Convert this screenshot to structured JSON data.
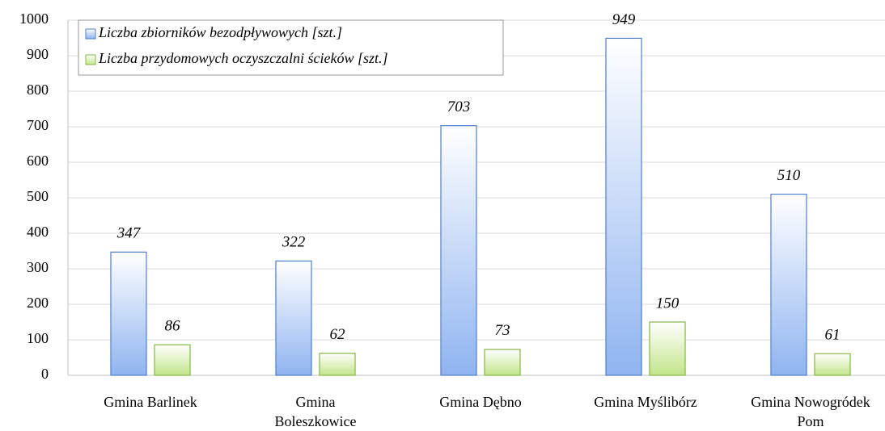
{
  "chart_data": {
    "type": "bar",
    "categories": [
      "Gmina Barlinek",
      "Gmina Boleszkowice",
      "Gmina Dębno",
      "Gmina Myślibórz",
      "Gmina Nowogródek Pom"
    ],
    "series": [
      {
        "name": "Liczba zbiorników bezodpływowych [szt.]",
        "color": "#8fb4f0",
        "stroke": "#4f7fc8",
        "values": [
          347,
          322,
          703,
          949,
          510
        ]
      },
      {
        "name": "Liczba przydomowych oczyszczalni ścieków [szt.]",
        "color": "#c2e58a",
        "stroke": "#86b845",
        "values": [
          86,
          62,
          73,
          150,
          61
        ]
      }
    ],
    "ylim": [
      0,
      1000
    ],
    "yticks": [
      0,
      100,
      200,
      300,
      400,
      500,
      600,
      700,
      800,
      900,
      1000
    ],
    "grid": true,
    "legend": "top-left"
  }
}
